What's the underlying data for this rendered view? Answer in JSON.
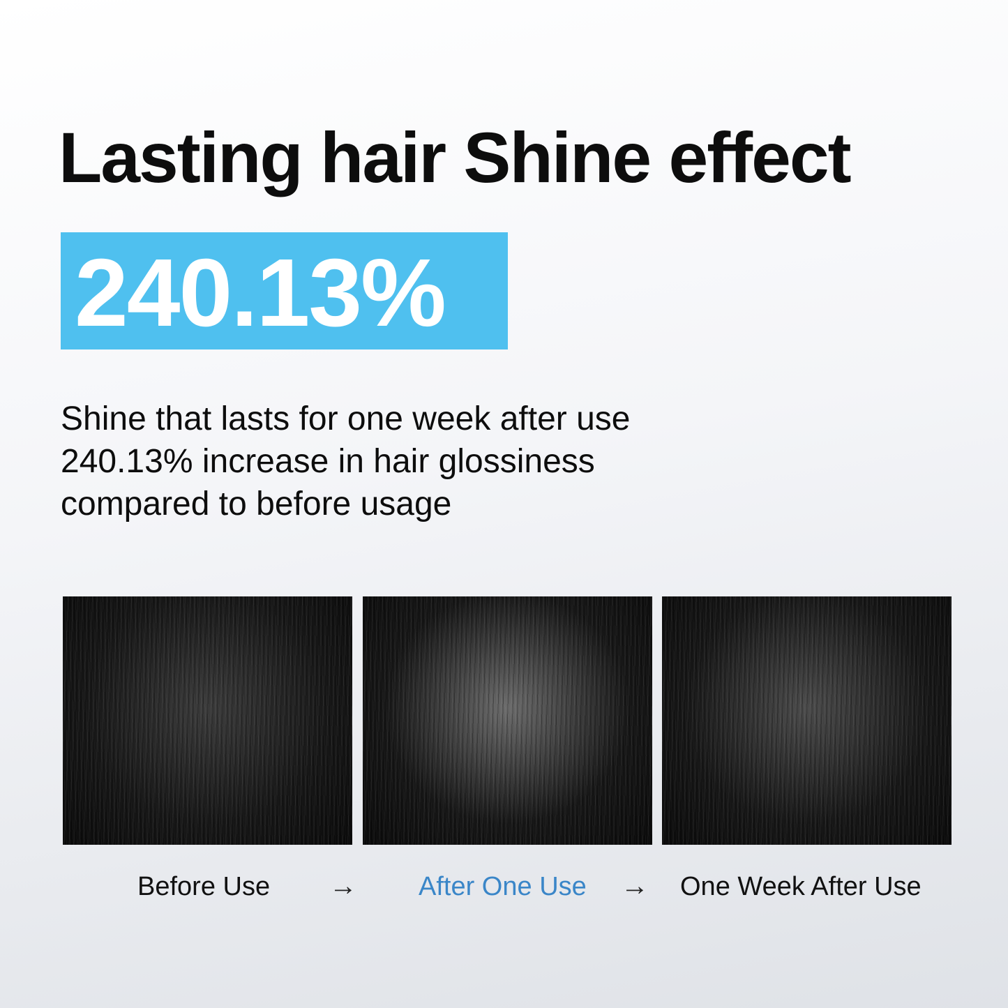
{
  "title": "Lasting hair Shine effect",
  "highlight": {
    "value": "240.13%",
    "color": "#4fc0ef"
  },
  "description": [
    "Shine that lasts for one week after use",
    "240.13% increase in hair glossiness",
    "compared to before usage"
  ],
  "stages": [
    {
      "label": "Before Use"
    },
    {
      "label": "After One Use",
      "color": "#3a86c8"
    },
    {
      "label": "One Week After Use"
    }
  ],
  "arrow_icon": "→"
}
